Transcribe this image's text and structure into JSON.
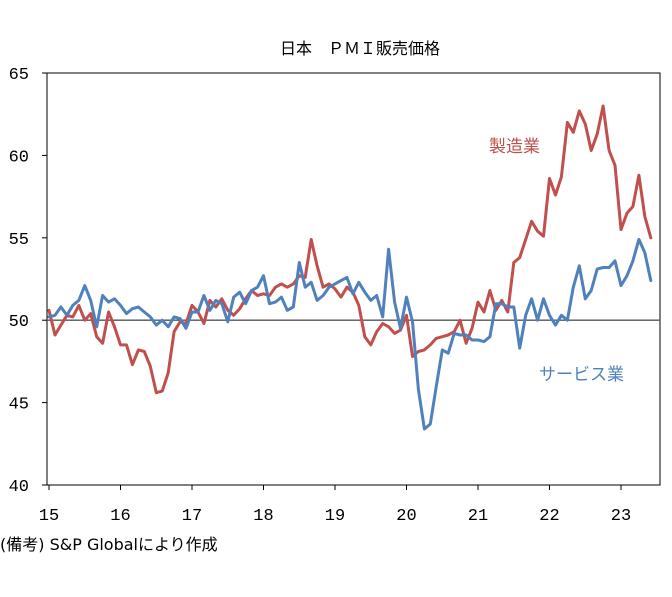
{
  "chart_data": {
    "type": "line",
    "title": "日本　ＰＭＩ販売価格",
    "ylim": [
      40,
      65
    ],
    "yticks": [
      "40",
      "45",
      "50",
      "55",
      "60",
      "65"
    ],
    "xticks": [
      "15",
      "16",
      "17",
      "18",
      "19",
      "20",
      "21",
      "22",
      "23"
    ],
    "reference_line": 50,
    "series": [
      {
        "name": "製造業",
        "color": "#c0504d",
        "x": [
          "2015-01",
          "2015-02",
          "2015-03",
          "2015-04",
          "2015-05",
          "2015-06",
          "2015-07",
          "2015-08",
          "2015-09",
          "2015-10",
          "2015-11",
          "2015-12",
          "2016-01",
          "2016-02",
          "2016-03",
          "2016-04",
          "2016-05",
          "2016-06",
          "2016-07",
          "2016-08",
          "2016-09",
          "2016-10",
          "2016-11",
          "2016-12",
          "2017-01",
          "2017-02",
          "2017-03",
          "2017-04",
          "2017-05",
          "2017-06",
          "2017-07",
          "2017-08",
          "2017-09",
          "2017-10",
          "2017-11",
          "2017-12",
          "2018-01",
          "2018-02",
          "2018-03",
          "2018-04",
          "2018-05",
          "2018-06",
          "2018-07",
          "2018-08",
          "2018-09",
          "2018-10",
          "2018-11",
          "2018-12",
          "2019-01",
          "2019-02",
          "2019-03",
          "2019-04",
          "2019-05",
          "2019-06",
          "2019-07",
          "2019-08",
          "2019-09",
          "2019-10",
          "2019-11",
          "2019-12",
          "2020-01",
          "2020-02",
          "2020-03",
          "2020-04",
          "2020-05",
          "2020-06",
          "2020-07",
          "2020-08",
          "2020-09",
          "2020-10",
          "2020-11",
          "2020-12",
          "2021-01",
          "2021-02",
          "2021-03",
          "2021-04",
          "2021-05",
          "2021-06",
          "2021-07",
          "2021-08",
          "2021-09",
          "2021-10",
          "2021-11",
          "2021-12",
          "2022-01",
          "2022-02",
          "2022-03",
          "2022-04",
          "2022-05",
          "2022-06",
          "2022-07",
          "2022-08",
          "2022-09",
          "2022-10",
          "2022-11",
          "2022-12",
          "2023-01",
          "2023-02",
          "2023-03",
          "2023-04",
          "2023-05",
          "2023-06"
        ],
        "values": [
          50.6,
          49.1,
          49.7,
          50.3,
          50.2,
          50.9,
          50.0,
          50.4,
          49.0,
          48.6,
          50.5,
          49.6,
          48.5,
          48.5,
          47.3,
          48.2,
          48.1,
          47.2,
          45.6,
          45.7,
          46.8,
          49.3,
          49.9,
          49.8,
          50.9,
          50.5,
          49.8,
          51.2,
          50.8,
          51.3,
          50.6,
          50.3,
          50.7,
          51.3,
          51.8,
          51.5,
          51.6,
          51.5,
          52.0,
          52.2,
          52.0,
          52.2,
          52.7,
          52.6,
          54.9,
          53.3,
          52.0,
          52.2,
          51.9,
          51.4,
          52.0,
          51.7,
          50.9,
          49.0,
          48.5,
          49.3,
          49.8,
          49.6,
          49.2,
          49.4,
          50.3,
          47.8,
          48.1,
          48.2,
          48.5,
          48.9,
          49.0,
          49.1,
          49.3,
          50.0,
          48.6,
          49.5,
          51.1,
          50.5,
          51.8,
          50.6,
          51.2,
          50.5,
          53.5,
          53.8,
          54.9,
          56.0,
          55.4,
          55.1,
          58.6,
          57.6,
          58.7,
          62.0,
          61.4,
          62.7,
          61.9,
          60.3,
          61.3,
          63.0,
          60.3,
          59.4,
          55.5,
          56.5,
          56.9,
          58.8,
          56.3,
          55.0
        ]
      },
      {
        "name": "サービス業",
        "color": "#4f81bd",
        "x": [
          "2015-01",
          "2015-02",
          "2015-03",
          "2015-04",
          "2015-05",
          "2015-06",
          "2015-07",
          "2015-08",
          "2015-09",
          "2015-10",
          "2015-11",
          "2015-12",
          "2016-01",
          "2016-02",
          "2016-03",
          "2016-04",
          "2016-05",
          "2016-06",
          "2016-07",
          "2016-08",
          "2016-09",
          "2016-10",
          "2016-11",
          "2016-12",
          "2017-01",
          "2017-02",
          "2017-03",
          "2017-04",
          "2017-05",
          "2017-06",
          "2017-07",
          "2017-08",
          "2017-09",
          "2017-10",
          "2017-11",
          "2017-12",
          "2018-01",
          "2018-02",
          "2018-03",
          "2018-04",
          "2018-05",
          "2018-06",
          "2018-07",
          "2018-08",
          "2018-09",
          "2018-10",
          "2018-11",
          "2018-12",
          "2019-01",
          "2019-02",
          "2019-03",
          "2019-04",
          "2019-05",
          "2019-06",
          "2019-07",
          "2019-08",
          "2019-09",
          "2019-10",
          "2019-11",
          "2019-12",
          "2020-01",
          "2020-02",
          "2020-03",
          "2020-04",
          "2020-05",
          "2020-06",
          "2020-07",
          "2020-08",
          "2020-09",
          "2020-10",
          "2020-11",
          "2020-12",
          "2021-01",
          "2021-02",
          "2021-03",
          "2021-04",
          "2021-05",
          "2021-06",
          "2021-07",
          "2021-08",
          "2021-09",
          "2021-10",
          "2021-11",
          "2021-12",
          "2022-01",
          "2022-02",
          "2022-03",
          "2022-04",
          "2022-05",
          "2022-06",
          "2022-07",
          "2022-08",
          "2022-09",
          "2022-10",
          "2022-11",
          "2022-12",
          "2023-01",
          "2023-02",
          "2023-03",
          "2023-04",
          "2023-05",
          "2023-06"
        ],
        "values": [
          50.2,
          50.3,
          50.8,
          50.3,
          50.9,
          51.2,
          52.1,
          51.2,
          49.6,
          51.5,
          51.1,
          51.3,
          50.9,
          50.4,
          50.7,
          50.8,
          50.5,
          50.2,
          49.7,
          50.0,
          49.6,
          50.2,
          50.1,
          49.5,
          50.5,
          50.5,
          51.5,
          50.6,
          51.2,
          51.0,
          49.9,
          51.4,
          51.7,
          51.0,
          51.8,
          52.0,
          52.7,
          51.0,
          51.1,
          51.4,
          50.6,
          50.8,
          53.5,
          52.0,
          52.3,
          51.2,
          51.5,
          52.0,
          52.2,
          52.4,
          52.6,
          51.6,
          52.3,
          51.7,
          51.2,
          51.5,
          50.2,
          54.3,
          51.1,
          49.5,
          51.4,
          49.9,
          45.8,
          43.4,
          43.7,
          46.0,
          48.2,
          48.0,
          49.2,
          49.1,
          49.1,
          48.8,
          48.8,
          48.7,
          49.0,
          51.0,
          51.0,
          50.8,
          50.8,
          48.3,
          50.3,
          51.3,
          50.0,
          51.3,
          50.3,
          49.7,
          50.3,
          50.0,
          52.0,
          53.3,
          51.3,
          51.8,
          53.1,
          53.2,
          53.2,
          53.6,
          52.1,
          52.7,
          53.6,
          54.9,
          54.1,
          52.4
        ]
      }
    ],
    "labels": {
      "manufacturing": "製造業",
      "services": "サービス業"
    }
  },
  "note": "(備考) S&P Globalにより作成"
}
